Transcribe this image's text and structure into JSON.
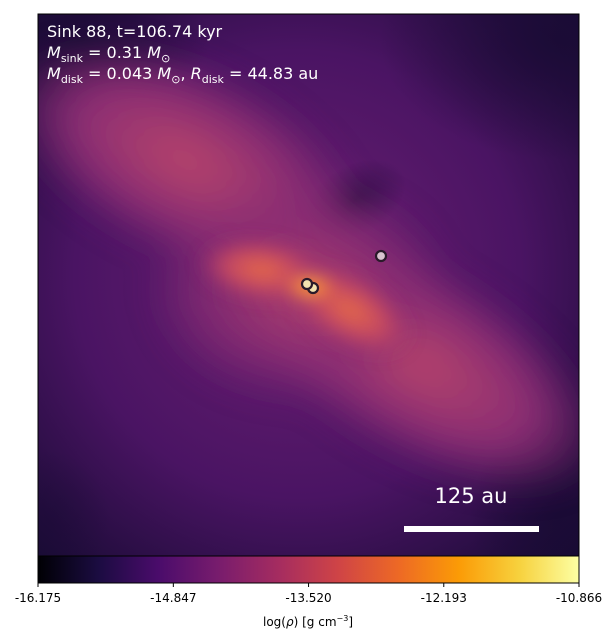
{
  "chart_data": {
    "type": "heatmap",
    "header": {
      "line1": "Sink 88, t=106.74 kyr",
      "line2": "M_sink = 0.31 M_⊙",
      "line3": "M_disk = 0.043 M_⊙, R_disk = 44.83 au"
    },
    "colorbar": {
      "label": "log(ρ) [g cm⁻³]",
      "ticks": [
        "-16.175",
        "-14.847",
        "-13.520",
        "-12.193",
        "-10.866"
      ],
      "range": [
        -16.175,
        -10.866
      ],
      "colormap": "inferno"
    },
    "scalebar_label": "125 au",
    "sinks": [
      {
        "name": "sink-a",
        "fill": "#f3e3b0"
      },
      {
        "name": "sink-b",
        "fill": "#f3e3b0"
      },
      {
        "name": "sink-c",
        "fill": "#d9c3cf"
      }
    ],
    "colors": {
      "background_low": "#0a0520",
      "disk_peak": "#f08a3a",
      "inferno_stops": [
        "#000004",
        "#1b0c41",
        "#4a0c6b",
        "#781c6d",
        "#a52c60",
        "#cf4446",
        "#ed6925",
        "#fb9b06",
        "#f7d13d",
        "#fcffa4"
      ]
    }
  }
}
